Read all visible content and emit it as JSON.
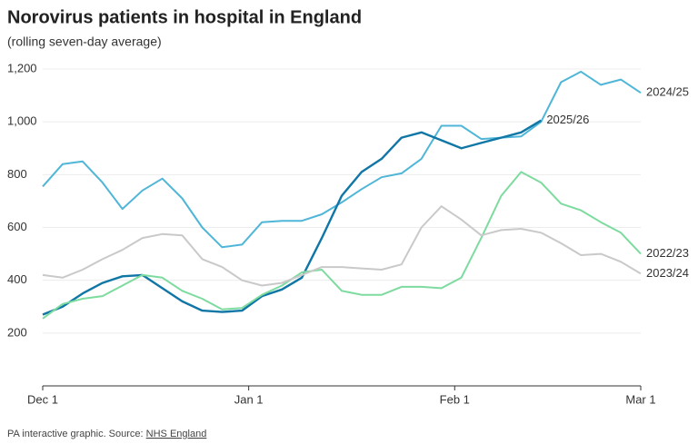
{
  "chart_data": {
    "type": "line",
    "title": "Norovirus patients in hospital in England",
    "subtitle": "(rolling seven-day average)",
    "source": "PA interactive graphic. Source:",
    "source_link": "NHS England",
    "x": [
      0,
      3,
      6,
      9,
      12,
      15,
      18,
      21,
      24,
      27,
      30,
      33,
      36,
      39,
      42,
      45,
      48,
      51,
      54,
      57,
      60,
      63,
      66,
      69,
      72,
      75,
      78,
      81,
      84,
      87,
      90
    ],
    "xlim": [
      0,
      90
    ],
    "xticks": [
      {
        "value": 0,
        "label": "Dec 1"
      },
      {
        "value": 31,
        "label": "Jan 1"
      },
      {
        "value": 62,
        "label": "Feb 1"
      },
      {
        "value": 90,
        "label": "Mar 1"
      }
    ],
    "ylim": [
      0,
      1200
    ],
    "yticks": [
      200,
      400,
      600,
      800,
      {
        "value": 1000,
        "label": "1,000"
      },
      {
        "value": 1200,
        "label": "1,200"
      }
    ],
    "grid": true,
    "series": [
      {
        "name": "2024/25",
        "color": "#4fb6d8",
        "values": [
          755,
          840,
          850,
          770,
          670,
          740,
          785,
          710,
          600,
          525,
          535,
          620,
          625,
          625,
          650,
          695,
          745,
          790,
          805,
          860,
          985,
          985,
          935,
          940,
          945,
          1000,
          1150,
          1190,
          1140,
          1160,
          1110
        ]
      },
      {
        "name": "2025/26",
        "color": "#0f76a6",
        "values": [
          270,
          300,
          350,
          390,
          415,
          420,
          370,
          320,
          285,
          280,
          285,
          340,
          365,
          410,
          560,
          720,
          810,
          860,
          940,
          960,
          930,
          900,
          920,
          940,
          960,
          1005,
          null,
          null,
          null,
          null,
          null
        ]
      },
      {
        "name": "2022/23",
        "color": "#7ddb9f",
        "values": [
          255,
          310,
          330,
          340,
          380,
          420,
          410,
          360,
          330,
          290,
          295,
          345,
          380,
          430,
          440,
          360,
          345,
          345,
          375,
          375,
          370,
          410,
          560,
          720,
          810,
          770,
          690,
          665,
          620,
          580,
          500
        ]
      },
      {
        "name": "2023/24",
        "color": "#c9c9c9",
        "values": [
          420,
          410,
          440,
          480,
          515,
          560,
          575,
          570,
          480,
          450,
          400,
          380,
          390,
          420,
          450,
          450,
          445,
          440,
          460,
          600,
          680,
          630,
          570,
          590,
          595,
          580,
          540,
          495,
          500,
          470,
          425
        ]
      }
    ]
  }
}
